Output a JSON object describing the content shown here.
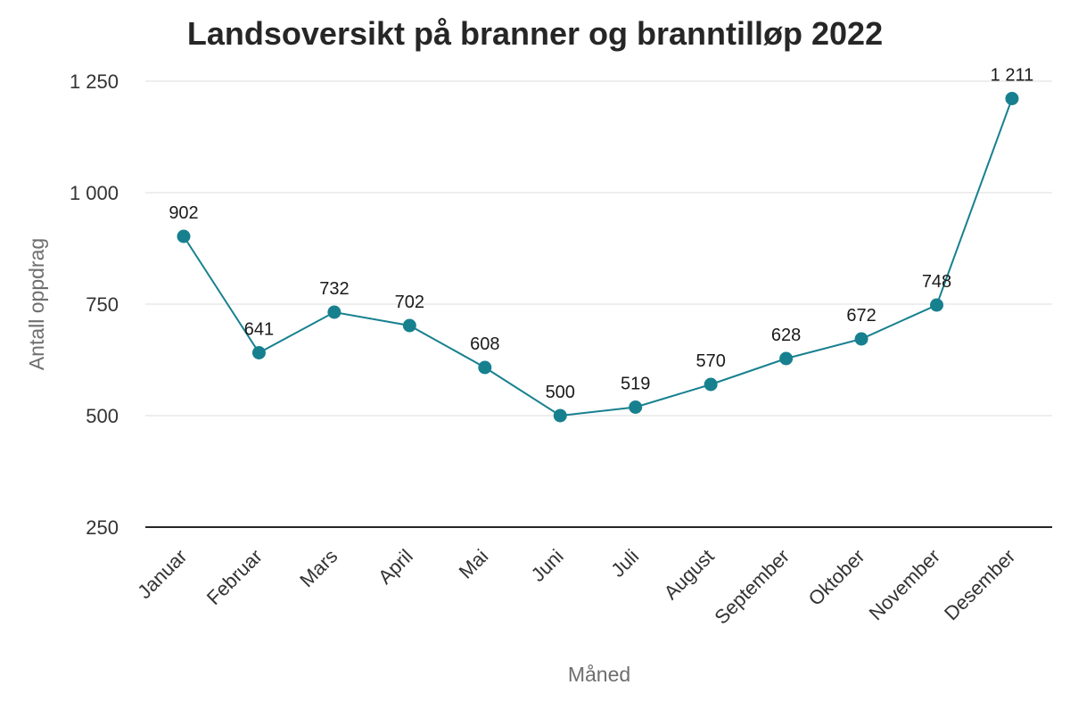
{
  "chart_data": {
    "type": "line",
    "title": "Landsoversikt på branner og branntilløp 2022",
    "xlabel": "Måned",
    "ylabel": "Antall oppdrag",
    "categories": [
      "Januar",
      "Februar",
      "Mars",
      "April",
      "Mai",
      "Juni",
      "Juli",
      "August",
      "September",
      "Oktober",
      "November",
      "Desember"
    ],
    "series": [
      {
        "values": [
          902,
          641,
          732,
          702,
          608,
          500,
          519,
          570,
          628,
          672,
          748,
          1211
        ],
        "value_labels": [
          "902",
          "641",
          "732",
          "702",
          "608",
          "500",
          "519",
          "570",
          "628",
          "672",
          "748",
          "1 211"
        ],
        "color": "#17808f"
      }
    ],
    "ylim": [
      250,
      1250
    ],
    "yticks": [
      250,
      500,
      750,
      1000,
      1250
    ],
    "ytick_labels": [
      "250",
      "500",
      "750",
      "1 000",
      "1 250"
    ],
    "grid": true,
    "legend": "none"
  }
}
